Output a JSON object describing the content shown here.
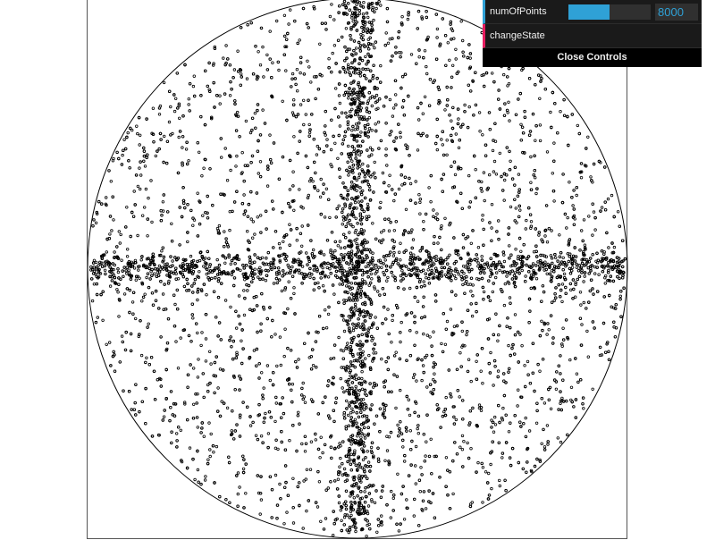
{
  "canvas": {
    "background": "#ffffff",
    "frame_color": "#555555",
    "circle_color": "#000000",
    "point_color": "#000000"
  },
  "visualization": {
    "num_points": 8000,
    "distribution": "uniform disk with concentrated cross along horizontal and vertical diameters"
  },
  "controls": {
    "items": [
      {
        "type": "number",
        "label": "numOfPoints",
        "value": "8000",
        "slider_fraction": 0.5,
        "accent": "#2fa1d6"
      },
      {
        "type": "function",
        "label": "changeState",
        "accent": "#e61d5f"
      }
    ],
    "close_label": "Close Controls"
  }
}
